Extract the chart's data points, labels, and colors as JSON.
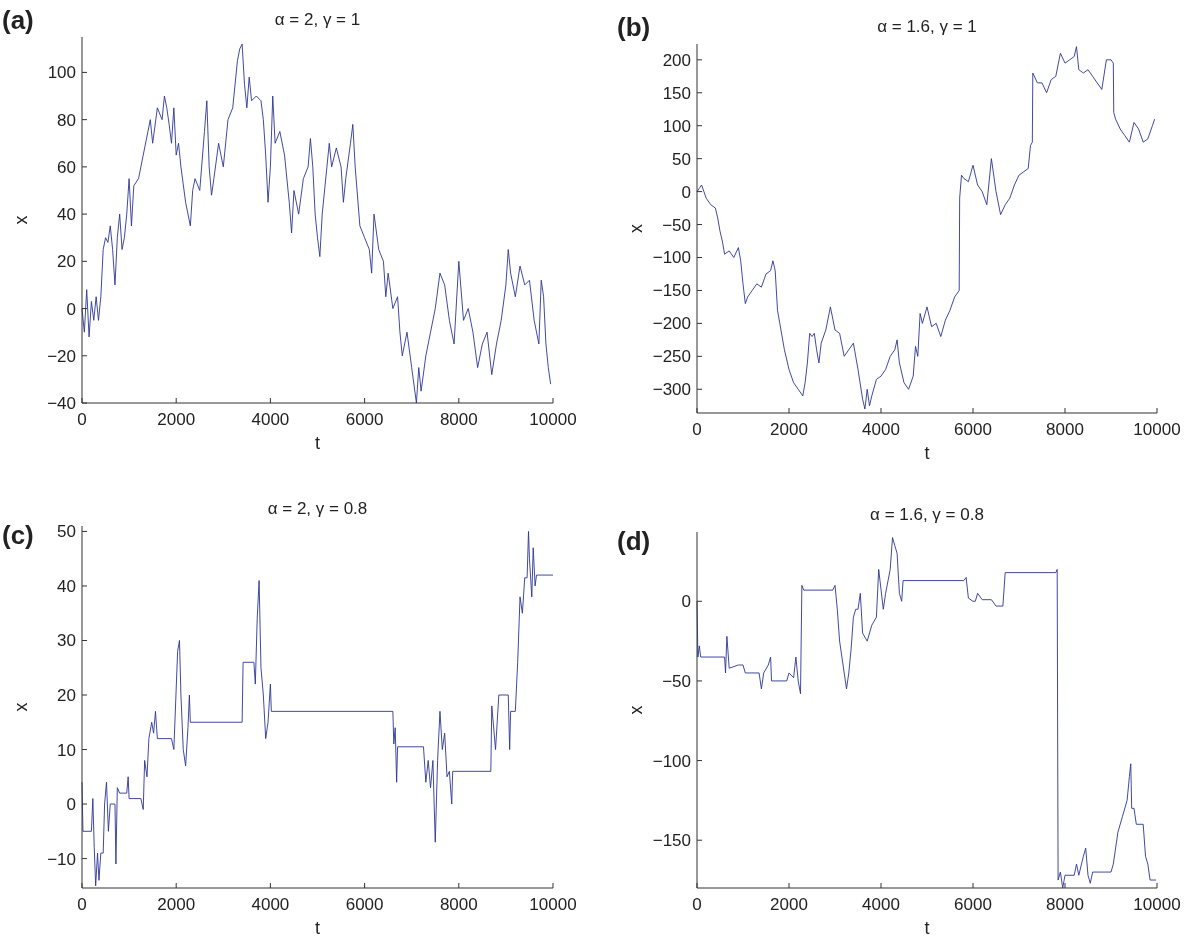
{
  "chart_data": [
    {
      "type": "line",
      "title": "α = 2, γ = 1",
      "xlabel": "t",
      "ylabel": "x",
      "annotations": [
        "(a)"
      ],
      "xlim": [
        0,
        10000
      ],
      "xticks": [
        0,
        2000,
        4000,
        6000,
        8000,
        10000
      ],
      "ylim": [
        -40,
        115
      ],
      "yticks": [
        -40,
        -20,
        0,
        20,
        40,
        60,
        80,
        100
      ],
      "grid": false,
      "series": [
        {
          "color": "#2b3595",
          "x": [
            0,
            50,
            100,
            150,
            200,
            250,
            300,
            350,
            400,
            450,
            500,
            550,
            600,
            650,
            700,
            750,
            800,
            850,
            900,
            950,
            1000,
            1050,
            1100,
            1200,
            1300,
            1400,
            1450,
            1500,
            1600,
            1700,
            1750,
            1800,
            1850,
            1900,
            1950,
            2000,
            2050,
            2100,
            2200,
            2300,
            2350,
            2400,
            2500,
            2600,
            2650,
            2700,
            2750,
            2800,
            2900,
            3000,
            3100,
            3200,
            3300,
            3350,
            3400,
            3450,
            3500,
            3550,
            3600,
            3700,
            3800,
            3850,
            3900,
            3950,
            4000,
            4050,
            4100,
            4200,
            4300,
            4400,
            4450,
            4500,
            4600,
            4700,
            4800,
            4850,
            4900,
            4950,
            5000,
            5050,
            5100,
            5200,
            5250,
            5300,
            5400,
            5500,
            5550,
            5600,
            5700,
            5750,
            5800,
            5900,
            6000,
            6100,
            6150,
            6200,
            6300,
            6400,
            6450,
            6500,
            6600,
            6700,
            6750,
            6800,
            6900,
            7000,
            7100,
            7150,
            7200,
            7300,
            7400,
            7500,
            7600,
            7700,
            7800,
            7900,
            8000,
            8100,
            8200,
            8300,
            8400,
            8500,
            8600,
            8700,
            8800,
            8900,
            9000,
            9050,
            9100,
            9200,
            9300,
            9400,
            9500,
            9600,
            9700,
            9750,
            9800,
            9850,
            9900,
            9950
          ],
          "values": [
            0,
            -10,
            8,
            -12,
            3,
            -5,
            5,
            -5,
            5,
            25,
            30,
            28,
            35,
            25,
            10,
            30,
            40,
            25,
            30,
            40,
            55,
            35,
            52,
            55,
            65,
            75,
            80,
            70,
            85,
            80,
            90,
            85,
            78,
            70,
            85,
            65,
            70,
            60,
            45,
            35,
            50,
            55,
            50,
            75,
            88,
            60,
            48,
            55,
            70,
            60,
            80,
            85,
            105,
            110,
            112,
            95,
            85,
            98,
            88,
            90,
            88,
            80,
            65,
            45,
            60,
            90,
            70,
            75,
            65,
            45,
            32,
            50,
            40,
            55,
            60,
            72,
            60,
            40,
            30,
            22,
            40,
            60,
            70,
            60,
            68,
            60,
            45,
            55,
            70,
            78,
            60,
            35,
            30,
            25,
            15,
            40,
            25,
            20,
            5,
            15,
            0,
            5,
            -10,
            -20,
            -10,
            -25,
            -40,
            -25,
            -35,
            -20,
            -10,
            0,
            15,
            10,
            -5,
            -15,
            20,
            -5,
            0,
            -10,
            -25,
            -15,
            -10,
            -28,
            -15,
            -5,
            10,
            25,
            15,
            5,
            18,
            10,
            12,
            -5,
            -15,
            12,
            5,
            -15,
            -25,
            -32
          ]
        }
      ]
    },
    {
      "type": "line",
      "title": "α = 1.6, γ = 1",
      "xlabel": "t",
      "ylabel": "x",
      "annotations": [
        "(b)"
      ],
      "xlim": [
        0,
        10000
      ],
      "xticks": [
        0,
        2000,
        4000,
        6000,
        8000,
        10000
      ],
      "ylim": [
        -336,
        224
      ],
      "yticks": [
        -300,
        -250,
        -200,
        -150,
        -100,
        -50,
        0,
        50,
        100,
        150,
        200
      ],
      "grid": false,
      "series": [
        {
          "color": "#2b3595",
          "x": [
            0,
            50,
            100,
            200,
            300,
            400,
            450,
            500,
            550,
            600,
            700,
            800,
            900,
            950,
            1000,
            1050,
            1100,
            1200,
            1300,
            1400,
            1500,
            1600,
            1650,
            1700,
            1750,
            1800,
            1900,
            2000,
            2100,
            2200,
            2300,
            2350,
            2400,
            2450,
            2500,
            2550,
            2600,
            2650,
            2700,
            2800,
            2900,
            3000,
            3100,
            3200,
            3300,
            3400,
            3500,
            3600,
            3650,
            3700,
            3750,
            3800,
            3900,
            4000,
            4100,
            4200,
            4300,
            4350,
            4400,
            4500,
            4600,
            4700,
            4750,
            4800,
            4850,
            4900,
            5000,
            5100,
            5200,
            5300,
            5400,
            5500,
            5600,
            5700,
            5710,
            5750,
            5800,
            5900,
            6000,
            6100,
            6200,
            6300,
            6400,
            6500,
            6600,
            6700,
            6800,
            6900,
            7000,
            7100,
            7200,
            7250,
            7290,
            7300,
            7400,
            7500,
            7600,
            7700,
            7800,
            7900,
            8000,
            8100,
            8200,
            8250,
            8300,
            8400,
            8500,
            8600,
            8700,
            8800,
            8900,
            9000,
            9050,
            9060,
            9100,
            9200,
            9300,
            9400,
            9500,
            9600,
            9700,
            9800,
            9900,
            9950
          ],
          "values": [
            0,
            5,
            10,
            -10,
            -20,
            -25,
            -40,
            -60,
            -75,
            -95,
            -90,
            -100,
            -85,
            -105,
            -140,
            -170,
            -160,
            -150,
            -140,
            -145,
            -125,
            -120,
            -105,
            -120,
            -180,
            -200,
            -240,
            -270,
            -290,
            -300,
            -310,
            -290,
            -260,
            -215,
            -220,
            -215,
            -240,
            -260,
            -230,
            -210,
            -175,
            -210,
            -215,
            -250,
            -240,
            -230,
            -270,
            -315,
            -330,
            -300,
            -325,
            -310,
            -285,
            -280,
            -270,
            -250,
            -240,
            -225,
            -260,
            -290,
            -300,
            -280,
            -235,
            -250,
            -185,
            -200,
            -175,
            -205,
            -200,
            -220,
            -195,
            -180,
            -160,
            -150,
            -10,
            25,
            20,
            15,
            40,
            10,
            0,
            -20,
            50,
            0,
            -35,
            -20,
            -10,
            10,
            25,
            30,
            35,
            70,
            75,
            180,
            165,
            165,
            150,
            170,
            175,
            210,
            195,
            200,
            205,
            220,
            185,
            180,
            185,
            175,
            165,
            155,
            200,
            200,
            195,
            120,
            110,
            95,
            85,
            75,
            105,
            95,
            75,
            80,
            100,
            110
          ]
        }
      ]
    },
    {
      "type": "line",
      "title": "α = 2, γ = 0.8",
      "xlabel": "t",
      "ylabel": "x",
      "annotations": [
        "(c)"
      ],
      "xlim": [
        0,
        10000
      ],
      "xticks": [
        0,
        2000,
        4000,
        6000,
        8000,
        10000
      ],
      "ylim": [
        -15.4,
        51
      ],
      "yticks": [
        -10,
        0,
        10,
        20,
        30,
        40,
        50
      ],
      "grid": false,
      "series": [
        {
          "color": "#2b3595",
          "x": [
            0,
            20,
            200,
            230,
            260,
            290,
            330,
            360,
            400,
            450,
            480,
            520,
            560,
            600,
            700,
            720,
            750,
            800,
            950,
            980,
            1000,
            1250,
            1300,
            1330,
            1380,
            1420,
            1480,
            1520,
            1560,
            1600,
            1900,
            1950,
            2030,
            2070,
            2100,
            2150,
            2200,
            2250,
            2280,
            2300,
            3400,
            3420,
            3650,
            3680,
            3720,
            3760,
            3800,
            3850,
            3900,
            3950,
            4000,
            4020,
            6600,
            6620,
            6650,
            6680,
            6700,
            7250,
            7300,
            7350,
            7400,
            7450,
            7500,
            7550,
            7600,
            7650,
            7700,
            7750,
            7800,
            7850,
            7870,
            8680,
            8700,
            8780,
            8850,
            9050,
            9080,
            9100,
            9200,
            9250,
            9300,
            9350,
            9400,
            9450,
            9480,
            9500,
            9550,
            9580,
            9620,
            9650,
            10000
          ],
          "values": [
            4,
            -5,
            -5,
            1,
            -8,
            -15,
            -9,
            -14,
            -9,
            -9,
            0,
            4,
            -5,
            0,
            0,
            -11,
            3,
            2,
            2,
            5,
            1,
            1,
            -1,
            8,
            5,
            12,
            15,
            13,
            17,
            12,
            12,
            10,
            28,
            30,
            20,
            10,
            7,
            14,
            20,
            15,
            15,
            26,
            26,
            22,
            34,
            41,
            25,
            20,
            12,
            15,
            22,
            17,
            17,
            11,
            14,
            4,
            10.5,
            10.5,
            4,
            8,
            3,
            8,
            -7,
            8,
            17,
            10,
            13,
            5,
            6,
            0,
            6,
            6,
            18,
            10,
            20,
            20,
            10,
            17,
            17,
            26,
            38,
            35,
            41.5,
            41.5,
            50,
            45,
            38,
            47,
            40,
            42,
            42
          ]
        }
      ]
    },
    {
      "type": "line",
      "title": "α = 1.6, γ = 0.8",
      "xlabel": "t",
      "ylabel": "x",
      "annotations": [
        "(d)"
      ],
      "xlim": [
        0,
        10000
      ],
      "xticks": [
        0,
        2000,
        4000,
        6000,
        8000,
        10000
      ],
      "ylim": [
        -180,
        43.5
      ],
      "yticks": [
        -150,
        -100,
        -50,
        0
      ],
      "grid": false,
      "series": [
        {
          "color": "#2b3595",
          "x": [
            0,
            20,
            50,
            80,
            600,
            620,
            650,
            700,
            900,
            1000,
            1050,
            1350,
            1400,
            1450,
            1550,
            1600,
            1620,
            1950,
            2000,
            2100,
            2150,
            2200,
            2250,
            2280,
            2320,
            2950,
            3000,
            3050,
            3100,
            3200,
            3250,
            3300,
            3350,
            3400,
            3450,
            3500,
            3550,
            3600,
            3700,
            3800,
            3900,
            3950,
            4050,
            4100,
            4200,
            4250,
            4300,
            4350,
            4400,
            4450,
            4480,
            5800,
            5850,
            5900,
            6000,
            6050,
            6100,
            6200,
            6400,
            6500,
            6650,
            6700,
            7800,
            7830,
            7850,
            7900,
            7950,
            8000,
            8200,
            8250,
            8300,
            8400,
            8450,
            8500,
            8550,
            8600,
            9000,
            9050,
            9150,
            9250,
            9350,
            9400,
            9430,
            9450,
            9500,
            9550,
            9700,
            9750,
            9800,
            9850,
            9980
          ],
          "values": [
            0,
            -35,
            -28,
            -35,
            -35,
            -45,
            -22,
            -42,
            -40,
            -40,
            -45,
            -45,
            -55,
            -45,
            -40,
            -35,
            -50,
            -50,
            -45,
            -48,
            -35,
            -50,
            -58,
            10,
            7,
            7,
            10,
            -5,
            -25,
            -45,
            -55,
            -45,
            -30,
            -10,
            -5,
            -5,
            5,
            -20,
            -25,
            -15,
            -10,
            20,
            -5,
            5,
            20,
            40,
            35,
            30,
            5,
            0,
            13,
            13,
            15,
            2,
            0,
            0,
            5,
            1,
            1,
            -3,
            -3,
            18,
            18,
            20,
            -175,
            -170,
            -180,
            -172,
            -172,
            -165,
            -172,
            -160,
            -155,
            -172,
            -177,
            -170,
            -170,
            -165,
            -145,
            -135,
            -125,
            -110,
            -102,
            -130,
            -130,
            -140,
            -140,
            -160,
            -165,
            -175,
            -175
          ]
        }
      ]
    }
  ]
}
